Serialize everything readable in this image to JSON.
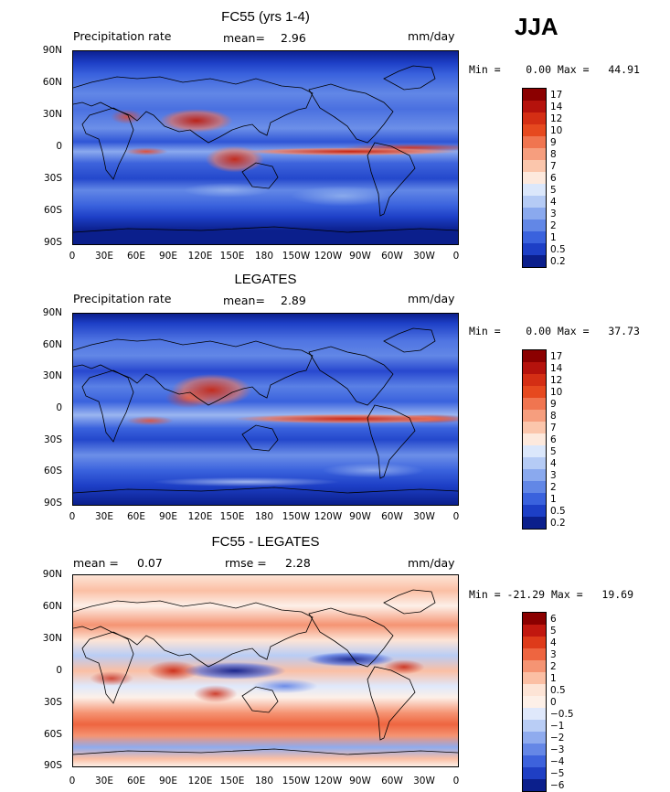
{
  "season": "JJA",
  "panels": [
    {
      "title": "FC55 (yrs 1-4)",
      "left_label": "Precipitation rate",
      "mean_label": "mean=",
      "mean_value": "2.96",
      "rmse_label": "",
      "rmse_value": "",
      "units": "mm/day",
      "minmax": "Min =    0.00 Max =   44.91",
      "cbar_labels": [
        "17",
        "14",
        "12",
        "10",
        "9",
        "8",
        "7",
        "6",
        "5",
        "4",
        "3",
        "2",
        "1",
        "0.5",
        "0.2"
      ]
    },
    {
      "title": "LEGATES",
      "left_label": "Precipitation rate",
      "mean_label": "mean=",
      "mean_value": "2.89",
      "rmse_label": "",
      "rmse_value": "",
      "units": "mm/day",
      "minmax": "Min =    0.00 Max =   37.73",
      "cbar_labels": [
        "17",
        "14",
        "12",
        "10",
        "9",
        "8",
        "7",
        "6",
        "5",
        "4",
        "3",
        "2",
        "1",
        "0.5",
        "0.2"
      ]
    },
    {
      "title": "FC55 - LEGATES",
      "left_label": "mean =",
      "mean_label": "",
      "mean_value": "0.07",
      "rmse_label": "rmse =",
      "rmse_value": "2.28",
      "units": "mm/day",
      "minmax": "Min = -21.29 Max =   19.69",
      "cbar_labels": [
        "6",
        "5",
        "4",
        "3",
        "2",
        "1",
        "0.5",
        "0",
        "−0.5",
        "−1",
        "−2",
        "−3",
        "−4",
        "−5",
        "−6"
      ]
    }
  ],
  "axes": {
    "y_ticks": [
      "90N",
      "60N",
      "30N",
      "0",
      "30S",
      "60S",
      "90S"
    ],
    "x_ticks": [
      "0",
      "30E",
      "60E",
      "90E",
      "120E",
      "150E",
      "180",
      "150W",
      "120W",
      "90W",
      "60W",
      "30W",
      "0"
    ]
  },
  "chart_data": [
    {
      "type": "heatmap",
      "title": "FC55 (yrs 1-4)",
      "variable": "Precipitation rate",
      "units": "mm/day",
      "mean": 2.96,
      "min": 0.0,
      "max": 44.91,
      "xlim": [
        0,
        360
      ],
      "ylim": [
        -90,
        90
      ],
      "levels": [
        0.2,
        0.5,
        1,
        2,
        3,
        4,
        5,
        6,
        7,
        8,
        9,
        10,
        12,
        14,
        17
      ]
    },
    {
      "type": "heatmap",
      "title": "LEGATES",
      "variable": "Precipitation rate",
      "units": "mm/day",
      "mean": 2.89,
      "min": 0.0,
      "max": 37.73,
      "xlim": [
        0,
        360
      ],
      "ylim": [
        -90,
        90
      ],
      "levels": [
        0.2,
        0.5,
        1,
        2,
        3,
        4,
        5,
        6,
        7,
        8,
        9,
        10,
        12,
        14,
        17
      ]
    },
    {
      "type": "heatmap",
      "title": "FC55 - LEGATES",
      "units": "mm/day",
      "mean": 0.07,
      "rmse": 2.28,
      "min": -21.29,
      "max": 19.69,
      "xlim": [
        0,
        360
      ],
      "ylim": [
        -90,
        90
      ],
      "levels": [
        -6,
        -5,
        -4,
        -3,
        -2,
        -1,
        -0.5,
        0,
        0.5,
        1,
        2,
        3,
        4,
        5,
        6
      ]
    }
  ],
  "colors": {
    "precip_scale": [
      "#8b0000",
      "#b5120c",
      "#d42e14",
      "#e6491f",
      "#f07550",
      "#f69e7e",
      "#fbc6ac",
      "#fde9dd",
      "#dbe7fb",
      "#b5cbf5",
      "#8aa9ee",
      "#6287e6",
      "#3a62dd",
      "#1d3fc6",
      "#0b1f8c"
    ],
    "diff_scale": [
      "#8b0000",
      "#c1180f",
      "#de3b1a",
      "#ee6540",
      "#f59473",
      "#fbbfa4",
      "#fde4d6",
      "#fdf0e8",
      "#dfe8fb",
      "#b9cdf5",
      "#8fabee",
      "#6587e6",
      "#3d62dc",
      "#1f3fc4",
      "#0b1f8c"
    ]
  }
}
